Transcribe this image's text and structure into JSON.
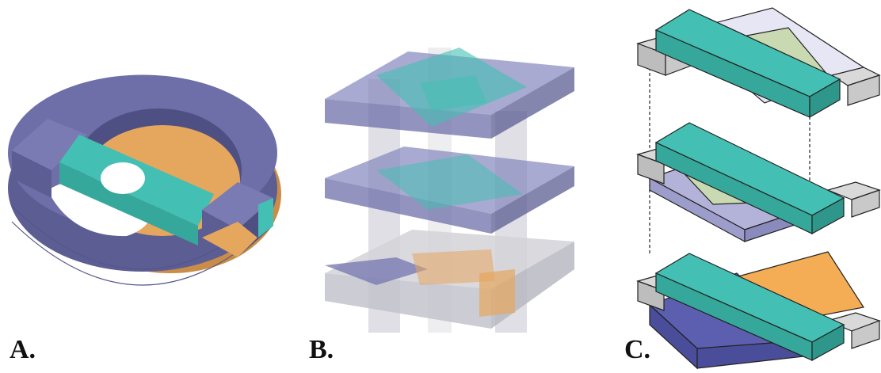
{
  "figure": {
    "panels": [
      {
        "label": "A."
      },
      {
        "label": "B."
      },
      {
        "label": "C."
      }
    ]
  },
  "colors": {
    "purple": "#6e6fa8",
    "purple_dark": "#5c5d93",
    "teal": "#43bfb3",
    "teal_dark": "#35a79b",
    "orange": "#e5a65e",
    "orange_dark": "#c98d49",
    "gray": "#c9c9c9",
    "lavender": "#b3b3da",
    "lavender_light": "#e6e6f4",
    "green_pale": "#c9d9b1",
    "blue_dark": "#5c5fb0"
  }
}
